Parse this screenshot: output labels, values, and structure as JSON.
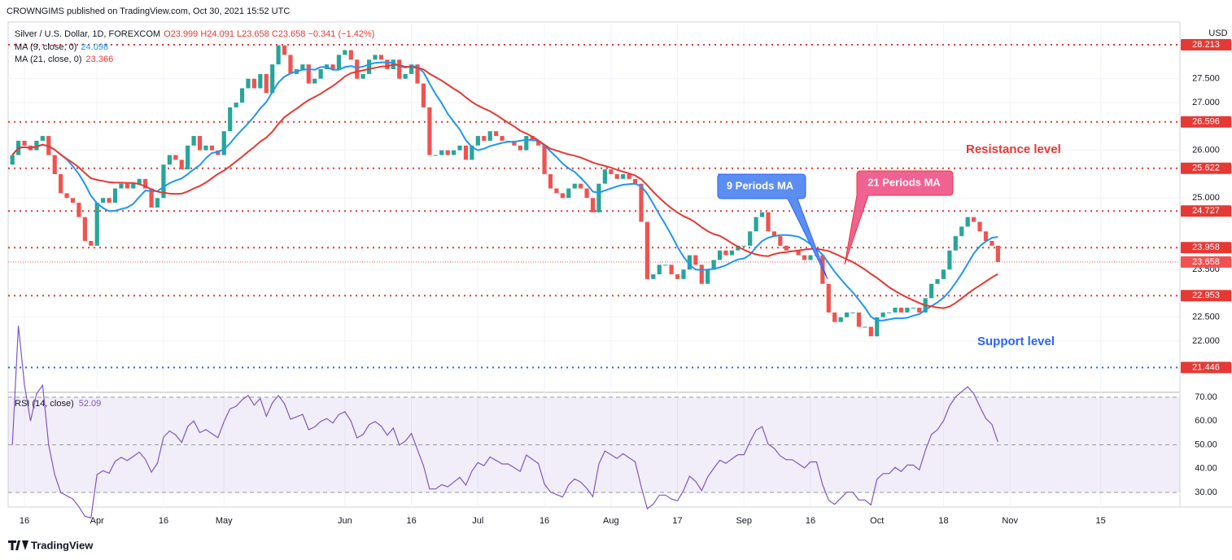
{
  "chart_data": {
    "type": "candlestick",
    "title": "CROWNGIMS published on TradingView.com, Oct 30, 2021 15:52 UTC",
    "symbol": "Silver / U.S. Dollar, 1D, FOREXCOM",
    "ohlc_text": "O23.999 H24.091 L23.658 C23.658 −0.341 (−1.42%)",
    "currency": "USD",
    "footer": "TradingView",
    "up_color": "#26a69a",
    "down_color": "#ef5350",
    "xlim": [
      -0.7,
      193.1
    ],
    "xticks": [
      {
        "value": 2,
        "label": "16"
      },
      {
        "value": 14,
        "label": "Apr"
      },
      {
        "value": 25,
        "label": "16"
      },
      {
        "value": 35,
        "label": "May"
      },
      {
        "value": 55,
        "label": "Jun"
      },
      {
        "value": 66,
        "label": "16"
      },
      {
        "value": 77,
        "label": "Jul"
      },
      {
        "value": 88,
        "label": "16"
      },
      {
        "value": 99,
        "label": "Aug"
      },
      {
        "value": 110,
        "label": "17"
      },
      {
        "value": 121,
        "label": "Sep"
      },
      {
        "value": 132,
        "label": "16"
      },
      {
        "value": 143,
        "label": "Oct"
      },
      {
        "value": 154,
        "label": "18"
      },
      {
        "value": 165,
        "label": "Nov"
      },
      {
        "value": 180,
        "label": "15"
      }
    ],
    "ylim": [
      20.96,
      28.69
    ],
    "yticks": [
      {
        "value": 22,
        "label": "22.000"
      },
      {
        "value": 22.5,
        "label": "22.500"
      },
      {
        "value": 23.5,
        "label": "23.500"
      },
      {
        "value": 25,
        "label": "25.000"
      },
      {
        "value": 26,
        "label": "26.000"
      },
      {
        "value": 27,
        "label": "27.000"
      },
      {
        "value": 27.5,
        "label": "27.500"
      }
    ],
    "open": [
      25.7,
      25.9,
      26.2,
      26.1,
      26.0,
      26.2,
      26.3,
      25.9,
      25.5,
      25.1,
      25.0,
      24.9,
      24.6,
      24.1,
      24.0,
      24.9,
      25.0,
      24.9,
      25.2,
      25.3,
      25.2,
      25.3,
      25.4,
      25.2,
      24.8,
      25.0,
      25.7,
      25.9,
      25.8,
      25.6,
      26.1,
      26.3,
      26.0,
      26.1,
      26.0,
      25.9,
      26.4,
      26.9,
      27.0,
      27.3,
      27.5,
      27.3,
      27.6,
      27.2,
      27.8,
      28.2,
      28.0,
      27.6,
      27.7,
      27.8,
      27.4,
      27.5,
      27.7,
      27.8,
      27.7,
      28.0,
      28.1,
      27.9,
      27.5,
      27.6,
      27.9,
      28.0,
      27.9,
      27.7,
      27.9,
      27.5,
      27.6,
      27.8,
      27.4,
      26.9,
      25.9,
      25.9,
      26.0,
      25.9,
      26.0,
      26.1,
      25.8,
      26.1,
      26.3,
      26.2,
      26.4,
      26.3,
      26.2,
      26.2,
      26.1,
      26.0,
      26.3,
      26.2,
      26.1,
      25.5,
      25.2,
      25.1,
      25.0,
      25.2,
      25.3,
      25.2,
      25.0,
      24.7,
      25.3,
      25.6,
      25.5,
      25.4,
      25.5,
      25.4,
      25.3,
      24.5,
      23.3,
      23.4,
      23.6,
      23.6,
      23.4,
      23.3,
      23.5,
      23.8,
      23.6,
      23.2,
      23.5,
      23.7,
      23.9,
      23.8,
      23.9,
      24.0,
      24.0,
      24.3,
      24.6,
      24.7,
      24.3,
      24.2,
      24.0,
      23.9,
      23.9,
      23.8,
      23.7,
      23.8,
      23.8,
      23.2,
      22.6,
      22.4,
      22.5,
      22.6,
      22.6,
      22.3,
      22.3,
      22.1,
      22.5,
      22.6,
      22.6,
      22.7,
      22.6,
      22.7,
      22.7,
      22.6,
      22.9,
      23.2,
      23.3,
      23.5,
      23.9,
      24.2,
      24.4,
      24.6,
      24.5,
      24.3,
      24.1,
      23.999
    ],
    "close": [
      25.9,
      26.2,
      26.1,
      26.0,
      26.2,
      26.3,
      25.9,
      25.5,
      25.1,
      25.0,
      24.9,
      24.6,
      24.1,
      24.0,
      24.9,
      25.0,
      24.9,
      25.2,
      25.3,
      25.2,
      25.3,
      25.4,
      25.2,
      24.8,
      25.0,
      25.7,
      25.9,
      25.8,
      25.6,
      26.1,
      26.3,
      26.0,
      26.1,
      26.0,
      25.9,
      26.4,
      26.9,
      27.0,
      27.3,
      27.5,
      27.3,
      27.6,
      27.2,
      27.8,
      28.2,
      28.0,
      27.6,
      27.7,
      27.8,
      27.4,
      27.5,
      27.7,
      27.8,
      27.7,
      28.0,
      28.1,
      27.9,
      27.5,
      27.6,
      27.9,
      28.0,
      27.9,
      27.7,
      27.9,
      27.5,
      27.6,
      27.8,
      27.4,
      26.9,
      25.9,
      25.9,
      26.0,
      25.9,
      26.0,
      26.1,
      25.8,
      26.1,
      26.3,
      26.2,
      26.4,
      26.3,
      26.2,
      26.2,
      26.1,
      26.0,
      26.3,
      26.2,
      26.1,
      25.5,
      25.2,
      25.1,
      25.0,
      25.2,
      25.3,
      25.2,
      25.0,
      24.7,
      25.3,
      25.6,
      25.5,
      25.4,
      25.5,
      25.4,
      25.3,
      24.5,
      23.3,
      23.4,
      23.6,
      23.6,
      23.4,
      23.3,
      23.5,
      23.8,
      23.6,
      23.2,
      23.5,
      23.7,
      23.9,
      23.8,
      23.9,
      24.0,
      24.0,
      24.3,
      24.6,
      24.7,
      24.3,
      24.2,
      24.0,
      23.9,
      23.9,
      23.8,
      23.7,
      23.8,
      23.8,
      23.2,
      22.6,
      22.4,
      22.5,
      22.6,
      22.6,
      22.3,
      22.3,
      22.1,
      22.5,
      22.6,
      22.6,
      22.7,
      22.6,
      22.7,
      22.7,
      22.6,
      22.9,
      23.2,
      23.3,
      23.5,
      23.9,
      24.2,
      24.4,
      24.6,
      24.5,
      24.3,
      24.1,
      23.999,
      23.658
    ],
    "levels": [
      {
        "value": 28.213,
        "color": "#e53935"
      },
      {
        "value": 26.596,
        "color": "#e53935"
      },
      {
        "value": 25.622,
        "color": "#e53935"
      },
      {
        "value": 24.727,
        "color": "#e53935"
      },
      {
        "value": 23.958,
        "color": "#e53935"
      },
      {
        "value": 22.953,
        "color": "#e53935"
      },
      {
        "value": 21.446,
        "color": "#2962ff"
      }
    ],
    "last_price": 23.658,
    "indicators": [
      {
        "name": "MA (9, close, 0)",
        "period": 9,
        "value_label": "24.098",
        "color": "#2196f3"
      },
      {
        "name": "MA (21, close, 0)",
        "period": 21,
        "value_label": "23.366",
        "color": "#e53935"
      }
    ],
    "rsi": {
      "name": "RSI (14, close)",
      "period": 14,
      "value_label": "52.09",
      "color": "#7e57c2",
      "ylim": [
        24.2,
        71.7
      ],
      "yticks": [
        {
          "value": 30,
          "label": "30.00"
        },
        {
          "value": 40,
          "label": "40.00"
        },
        {
          "value": 50,
          "label": "50.00"
        },
        {
          "value": 60,
          "label": "60.00"
        },
        {
          "value": 70,
          "label": "70.00"
        }
      ],
      "band": [
        30,
        70
      ]
    },
    "annotations": [
      "Resistance level",
      "Support level",
      "9 Periods MA",
      "21 Periods MA"
    ]
  }
}
